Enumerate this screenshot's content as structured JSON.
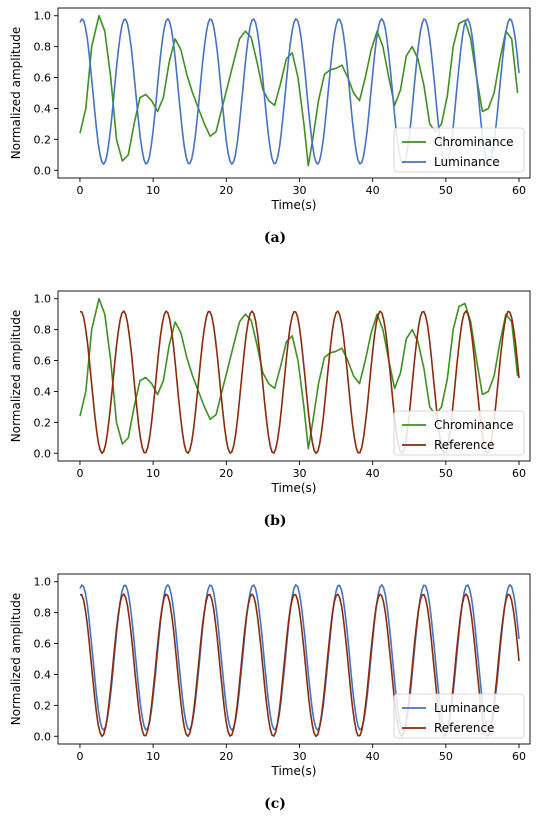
{
  "colors": {
    "chrominance": "#3f8f23",
    "luminance": "#4472c4",
    "reference": "#8b2a0b"
  },
  "chart_data": [
    {
      "type": "line",
      "caption": "(a)",
      "xlabel": "Time(s)",
      "ylabel": "Normalized amplitude",
      "xlim": [
        -3,
        61.5
      ],
      "ylim": [
        -0.05,
        1.05
      ],
      "xticks": [
        0,
        10,
        20,
        30,
        40,
        50,
        60
      ],
      "yticks": [
        0.0,
        0.2,
        0.4,
        0.6,
        0.8,
        1.0
      ],
      "grid": false,
      "legend_position": "lower-right",
      "series": [
        {
          "name": "Chrominance",
          "color": "chrominance",
          "points": [
            [
              0,
              0.24
            ],
            [
              0.8,
              0.4
            ],
            [
              1.6,
              0.8
            ],
            [
              2.6,
              1.0
            ],
            [
              3.4,
              0.9
            ],
            [
              4.2,
              0.6
            ],
            [
              5.0,
              0.2
            ],
            [
              5.8,
              0.06
            ],
            [
              6.6,
              0.1
            ],
            [
              7.4,
              0.3
            ],
            [
              8.2,
              0.47
            ],
            [
              9.0,
              0.49
            ],
            [
              9.8,
              0.45
            ],
            [
              10.6,
              0.38
            ],
            [
              11.4,
              0.47
            ],
            [
              12.2,
              0.7
            ],
            [
              13.0,
              0.85
            ],
            [
              13.8,
              0.78
            ],
            [
              14.6,
              0.62
            ],
            [
              15.4,
              0.5
            ],
            [
              16.2,
              0.4
            ],
            [
              17.0,
              0.3
            ],
            [
              17.8,
              0.22
            ],
            [
              18.6,
              0.25
            ],
            [
              19.4,
              0.4
            ],
            [
              20.2,
              0.55
            ],
            [
              21.0,
              0.7
            ],
            [
              21.8,
              0.85
            ],
            [
              22.6,
              0.9
            ],
            [
              23.4,
              0.86
            ],
            [
              24.2,
              0.7
            ],
            [
              25.0,
              0.52
            ],
            [
              25.8,
              0.45
            ],
            [
              26.6,
              0.42
            ],
            [
              27.4,
              0.56
            ],
            [
              28.2,
              0.72
            ],
            [
              29.0,
              0.76
            ],
            [
              29.8,
              0.6
            ],
            [
              30.6,
              0.3
            ],
            [
              31.2,
              0.03
            ],
            [
              31.8,
              0.2
            ],
            [
              32.6,
              0.45
            ],
            [
              33.4,
              0.62
            ],
            [
              34.2,
              0.65
            ],
            [
              35.0,
              0.66
            ],
            [
              35.8,
              0.68
            ],
            [
              36.6,
              0.6
            ],
            [
              37.4,
              0.5
            ],
            [
              38.2,
              0.45
            ],
            [
              39.0,
              0.6
            ],
            [
              39.8,
              0.78
            ],
            [
              40.6,
              0.9
            ],
            [
              41.4,
              0.8
            ],
            [
              42.2,
              0.6
            ],
            [
              43.0,
              0.42
            ],
            [
              43.8,
              0.52
            ],
            [
              44.6,
              0.74
            ],
            [
              45.4,
              0.8
            ],
            [
              46.2,
              0.72
            ],
            [
              47.0,
              0.55
            ],
            [
              47.8,
              0.3
            ],
            [
              48.6,
              0.25
            ],
            [
              49.4,
              0.3
            ],
            [
              50.2,
              0.48
            ],
            [
              51.0,
              0.8
            ],
            [
              51.8,
              0.95
            ],
            [
              52.6,
              0.97
            ],
            [
              53.4,
              0.85
            ],
            [
              54.2,
              0.6
            ],
            [
              55.0,
              0.38
            ],
            [
              55.8,
              0.4
            ],
            [
              56.6,
              0.5
            ],
            [
              57.4,
              0.72
            ],
            [
              58.2,
              0.9
            ],
            [
              59.0,
              0.85
            ],
            [
              59.8,
              0.5
            ]
          ]
        },
        {
          "name": "Luminance",
          "color": "luminance",
          "freq": 0.171,
          "phase": 1.25,
          "amp": 0.47,
          "offset": 0.51,
          "points": []
        }
      ]
    },
    {
      "type": "line",
      "caption": "(b)",
      "xlabel": "Time(s)",
      "ylabel": "Normalized amplitude",
      "xlim": [
        -3,
        61.5
      ],
      "ylim": [
        -0.05,
        1.05
      ],
      "xticks": [
        0,
        10,
        20,
        30,
        40,
        50,
        60
      ],
      "yticks": [
        0.0,
        0.2,
        0.4,
        0.6,
        0.8,
        1.0
      ],
      "grid": false,
      "legend_position": "lower-right",
      "series": [
        {
          "name": "Chrominance",
          "color": "chrominance",
          "points": [
            [
              0,
              0.24
            ],
            [
              0.8,
              0.4
            ],
            [
              1.6,
              0.8
            ],
            [
              2.6,
              1.0
            ],
            [
              3.4,
              0.9
            ],
            [
              4.2,
              0.6
            ],
            [
              5.0,
              0.2
            ],
            [
              5.8,
              0.06
            ],
            [
              6.6,
              0.1
            ],
            [
              7.4,
              0.3
            ],
            [
              8.2,
              0.47
            ],
            [
              9.0,
              0.49
            ],
            [
              9.8,
              0.45
            ],
            [
              10.6,
              0.38
            ],
            [
              11.4,
              0.47
            ],
            [
              12.2,
              0.7
            ],
            [
              13.0,
              0.85
            ],
            [
              13.8,
              0.78
            ],
            [
              14.6,
              0.62
            ],
            [
              15.4,
              0.5
            ],
            [
              16.2,
              0.4
            ],
            [
              17.0,
              0.3
            ],
            [
              17.8,
              0.22
            ],
            [
              18.6,
              0.25
            ],
            [
              19.4,
              0.4
            ],
            [
              20.2,
              0.55
            ],
            [
              21.0,
              0.7
            ],
            [
              21.8,
              0.85
            ],
            [
              22.6,
              0.9
            ],
            [
              23.4,
              0.86
            ],
            [
              24.2,
              0.7
            ],
            [
              25.0,
              0.52
            ],
            [
              25.8,
              0.45
            ],
            [
              26.6,
              0.42
            ],
            [
              27.4,
              0.56
            ],
            [
              28.2,
              0.72
            ],
            [
              29.0,
              0.76
            ],
            [
              29.8,
              0.6
            ],
            [
              30.6,
              0.3
            ],
            [
              31.2,
              0.03
            ],
            [
              31.8,
              0.2
            ],
            [
              32.6,
              0.45
            ],
            [
              33.4,
              0.62
            ],
            [
              34.2,
              0.65
            ],
            [
              35.0,
              0.66
            ],
            [
              35.8,
              0.68
            ],
            [
              36.6,
              0.6
            ],
            [
              37.4,
              0.5
            ],
            [
              38.2,
              0.45
            ],
            [
              39.0,
              0.6
            ],
            [
              39.8,
              0.78
            ],
            [
              40.6,
              0.9
            ],
            [
              41.4,
              0.8
            ],
            [
              42.2,
              0.6
            ],
            [
              43.0,
              0.42
            ],
            [
              43.8,
              0.52
            ],
            [
              44.6,
              0.74
            ],
            [
              45.4,
              0.8
            ],
            [
              46.2,
              0.72
            ],
            [
              47.0,
              0.55
            ],
            [
              47.8,
              0.3
            ],
            [
              48.6,
              0.25
            ],
            [
              49.4,
              0.3
            ],
            [
              50.2,
              0.48
            ],
            [
              51.0,
              0.8
            ],
            [
              51.8,
              0.95
            ],
            [
              52.6,
              0.97
            ],
            [
              53.4,
              0.85
            ],
            [
              54.2,
              0.6
            ],
            [
              55.0,
              0.38
            ],
            [
              55.8,
              0.4
            ],
            [
              56.6,
              0.5
            ],
            [
              57.4,
              0.72
            ],
            [
              58.2,
              0.9
            ],
            [
              59.0,
              0.85
            ],
            [
              59.8,
              0.5
            ]
          ]
        },
        {
          "name": "Reference",
          "color": "reference",
          "freq": 0.171,
          "phase": 1.45,
          "amp": 0.46,
          "offset": 0.46,
          "points": []
        }
      ]
    },
    {
      "type": "line",
      "caption": "(c)",
      "xlabel": "Time(s)",
      "ylabel": "Normalized amplitude",
      "xlim": [
        -3,
        61.5
      ],
      "ylim": [
        -0.05,
        1.05
      ],
      "xticks": [
        0,
        10,
        20,
        30,
        40,
        50,
        60
      ],
      "yticks": [
        0.0,
        0.2,
        0.4,
        0.6,
        0.8,
        1.0
      ],
      "grid": false,
      "legend_position": "lower-right",
      "series": [
        {
          "name": "Luminance",
          "color": "luminance",
          "freq": 0.171,
          "phase": 1.25,
          "amp": 0.47,
          "offset": 0.51,
          "points": []
        },
        {
          "name": "Reference",
          "color": "reference",
          "freq": 0.171,
          "phase": 1.45,
          "amp": 0.46,
          "offset": 0.46,
          "points": []
        }
      ]
    }
  ]
}
